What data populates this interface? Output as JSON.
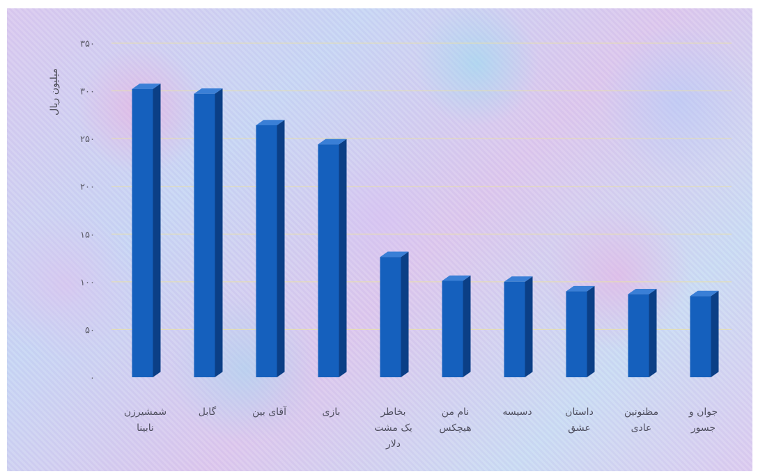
{
  "chart_data": {
    "type": "bar",
    "title": "",
    "ylabel": "میلیون ریال",
    "xlabel": "",
    "ylim": [
      0,
      350
    ],
    "yticks": [
      "۰",
      "۵۰",
      "۱۰۰",
      "۱۵۰",
      "۲۰۰",
      "۲۵۰",
      "۳۰۰",
      "۳۵۰"
    ],
    "ytick_values": [
      0,
      50,
      100,
      150,
      200,
      250,
      300,
      350
    ],
    "grid": true,
    "categories": [
      [
        "شمشیرزن",
        "نابینا"
      ],
      [
        "گابل"
      ],
      [
        "آقای بین"
      ],
      [
        "بازی"
      ],
      [
        "بخاطر",
        "یک مشت",
        "دلار"
      ],
      [
        "نام من",
        "هیچکس"
      ],
      [
        "دسیسه"
      ],
      [
        "داستان",
        "عشق"
      ],
      [
        "مظنونین",
        "عادی"
      ],
      [
        "جوان و",
        "جسور"
      ]
    ],
    "values": [
      302,
      297,
      264,
      244,
      126,
      101,
      100,
      90,
      87,
      85
    ],
    "bar_color": "#1560bd",
    "bar_side_color": "#0b3f86",
    "bar_top_color": "#3a7fd6"
  }
}
